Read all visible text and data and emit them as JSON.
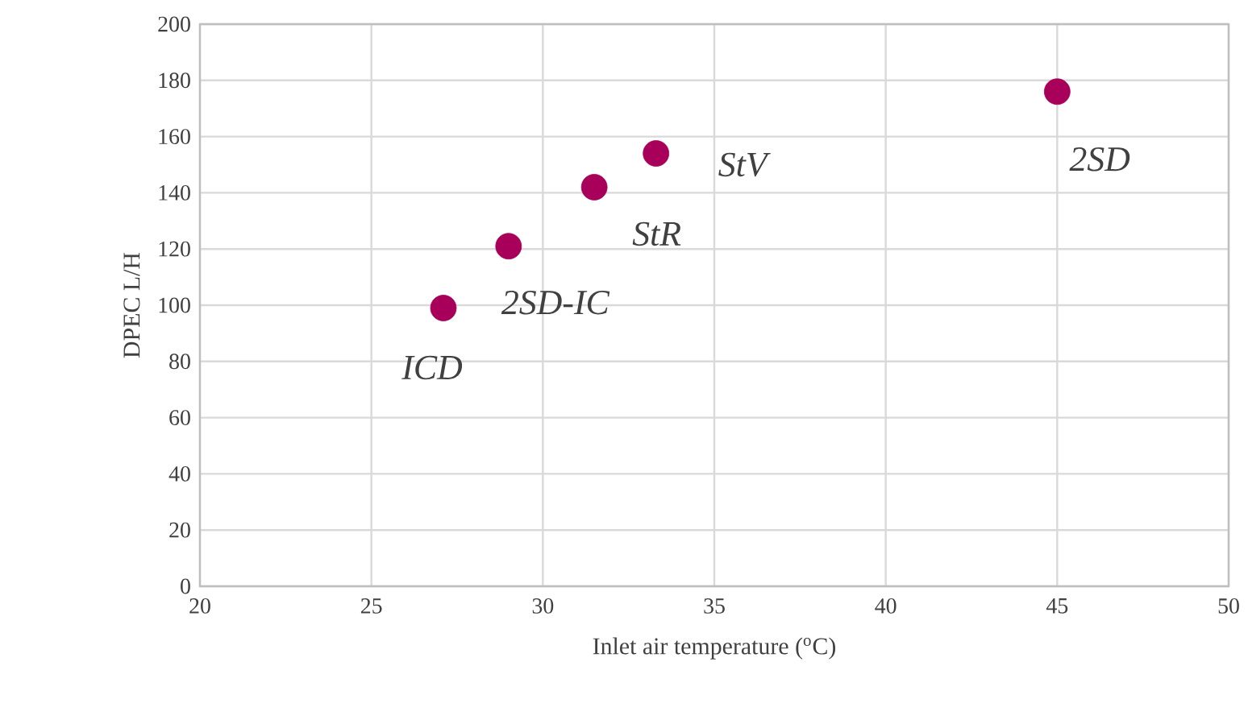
{
  "chart_data": {
    "type": "scatter",
    "xlabel": "Inlet air temperature ($^{o}$C)",
    "ylabel": "DPEC L/H",
    "x": [
      27.1,
      29.0,
      31.5,
      33.3,
      45.0
    ],
    "series": [
      {
        "color": "#a8005a",
        "values": [
          99,
          121,
          142,
          154,
          176
        ]
      }
    ],
    "xlim": [
      20,
      50
    ],
    "xticks": [
      20,
      25,
      30,
      35,
      40,
      45,
      50
    ],
    "ylim": [
      0,
      200
    ],
    "yticks": [
      0,
      20,
      40,
      60,
      80,
      100,
      120,
      140,
      160,
      180,
      200
    ],
    "grid": true,
    "marker": "circle",
    "annotations": [
      {
        "text": "ICD",
        "x": 27.1,
        "y": 99
      },
      {
        "text": "2SD-IC",
        "x": 29.0,
        "y": 121
      },
      {
        "text": "StR",
        "x": 31.5,
        "y": 142
      },
      {
        "text": "StV",
        "x": 33.3,
        "y": 154
      },
      {
        "text": "2SD",
        "x": 45.0,
        "y": 176
      }
    ]
  }
}
